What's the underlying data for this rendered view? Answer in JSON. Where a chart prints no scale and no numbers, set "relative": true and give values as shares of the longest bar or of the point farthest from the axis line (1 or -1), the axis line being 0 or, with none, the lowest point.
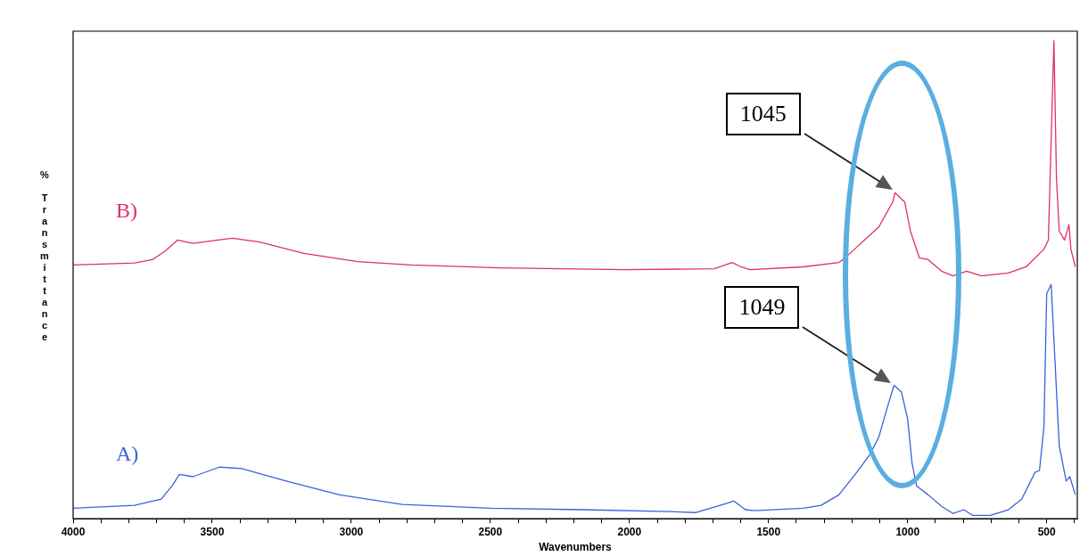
{
  "chart_data": {
    "type": "line",
    "xlabel": "Wavenumbers",
    "ylabel": "% Transmittance",
    "relative": true,
    "marker": "none",
    "xlim": [
      4000,
      390
    ],
    "xticks": [
      4000,
      {
        "value": 3900,
        "label": null
      },
      {
        "value": 3800,
        "label": null
      },
      {
        "value": 3700,
        "label": null
      },
      {
        "value": 3600,
        "label": null
      },
      3500,
      {
        "value": 3400,
        "label": null
      },
      {
        "value": 3300,
        "label": null
      },
      {
        "value": 3200,
        "label": null
      },
      {
        "value": 3100,
        "label": null
      },
      3000,
      {
        "value": 2900,
        "label": null
      },
      {
        "value": 2800,
        "label": null
      },
      {
        "value": 2700,
        "label": null
      },
      {
        "value": 2600,
        "label": null
      },
      2500,
      {
        "value": 2400,
        "label": null
      },
      {
        "value": 2300,
        "label": null
      },
      {
        "value": 2200,
        "label": null
      },
      {
        "value": 2100,
        "label": null
      },
      2000,
      {
        "value": 1900,
        "label": null
      },
      {
        "value": 1800,
        "label": null
      },
      {
        "value": 1700,
        "label": null
      },
      {
        "value": 1600,
        "label": null
      },
      1500,
      {
        "value": 1400,
        "label": null
      },
      {
        "value": 1300,
        "label": null
      },
      {
        "value": 1200,
        "label": null
      },
      {
        "value": 1100,
        "label": null
      },
      1000,
      {
        "value": 900,
        "label": null
      },
      {
        "value": 800,
        "label": null
      },
      {
        "value": 700,
        "label": null
      },
      {
        "value": 600,
        "label": null
      },
      500,
      {
        "value": 400,
        "label": null
      }
    ],
    "series": [
      {
        "name": "B)",
        "color": "#e03060",
        "x": [
          4000,
          3779,
          3715,
          3667,
          3625,
          3570,
          3426,
          3330,
          3170,
          2977,
          2785,
          2465,
          2016,
          1695,
          1631,
          1599,
          1567,
          1375,
          1247,
          1215,
          1103,
          1054,
          1045,
          1010,
          990,
          958,
          926,
          878,
          837,
          788,
          734,
          638,
          574,
          510,
          494,
          474,
          465,
          455,
          436,
          420,
          413,
          397
        ],
        "values": [
          0.531,
          0.535,
          0.542,
          0.561,
          0.583,
          0.576,
          0.587,
          0.579,
          0.555,
          0.538,
          0.531,
          0.525,
          0.521,
          0.523,
          0.536,
          0.527,
          0.521,
          0.527,
          0.536,
          0.551,
          0.611,
          0.662,
          0.682,
          0.662,
          0.602,
          0.546,
          0.542,
          0.518,
          0.508,
          0.518,
          0.508,
          0.514,
          0.527,
          0.564,
          0.583,
          1,
          0.714,
          0.602,
          0.583,
          0.615,
          0.564,
          0.527
        ]
      },
      {
        "name": "A)",
        "color": "#3a62d8",
        "x": [
          4000,
          3779,
          3683,
          3644,
          3618,
          3570,
          3474,
          3394,
          3234,
          3042,
          2817,
          2497,
          2176,
          1856,
          1760,
          1663,
          1625,
          1583,
          1551,
          1375,
          1311,
          1247,
          1183,
          1135,
          1103,
          1071,
          1049,
          1022,
          1000,
          984,
          968,
          926,
          878,
          837,
          798,
          766,
          702,
          638,
          590,
          542,
          526,
          510,
          500,
          484,
          471,
          455,
          430,
          417,
          397
        ],
        "values": [
          0.022,
          0.028,
          0.041,
          0.069,
          0.093,
          0.088,
          0.108,
          0.105,
          0.079,
          0.05,
          0.03,
          0.022,
          0.019,
          0.015,
          0.013,
          0.03,
          0.037,
          0.019,
          0.017,
          0.022,
          0.028,
          0.05,
          0.097,
          0.135,
          0.172,
          0.237,
          0.279,
          0.265,
          0.209,
          0.116,
          0.069,
          0.05,
          0.026,
          0.011,
          0.019,
          0.007,
          0.007,
          0.019,
          0.041,
          0.097,
          0.101,
          0.191,
          0.471,
          0.49,
          0.34,
          0.153,
          0.079,
          0.088,
          0.05
        ]
      }
    ],
    "annotations": [
      "1045",
      "1049"
    ]
  }
}
